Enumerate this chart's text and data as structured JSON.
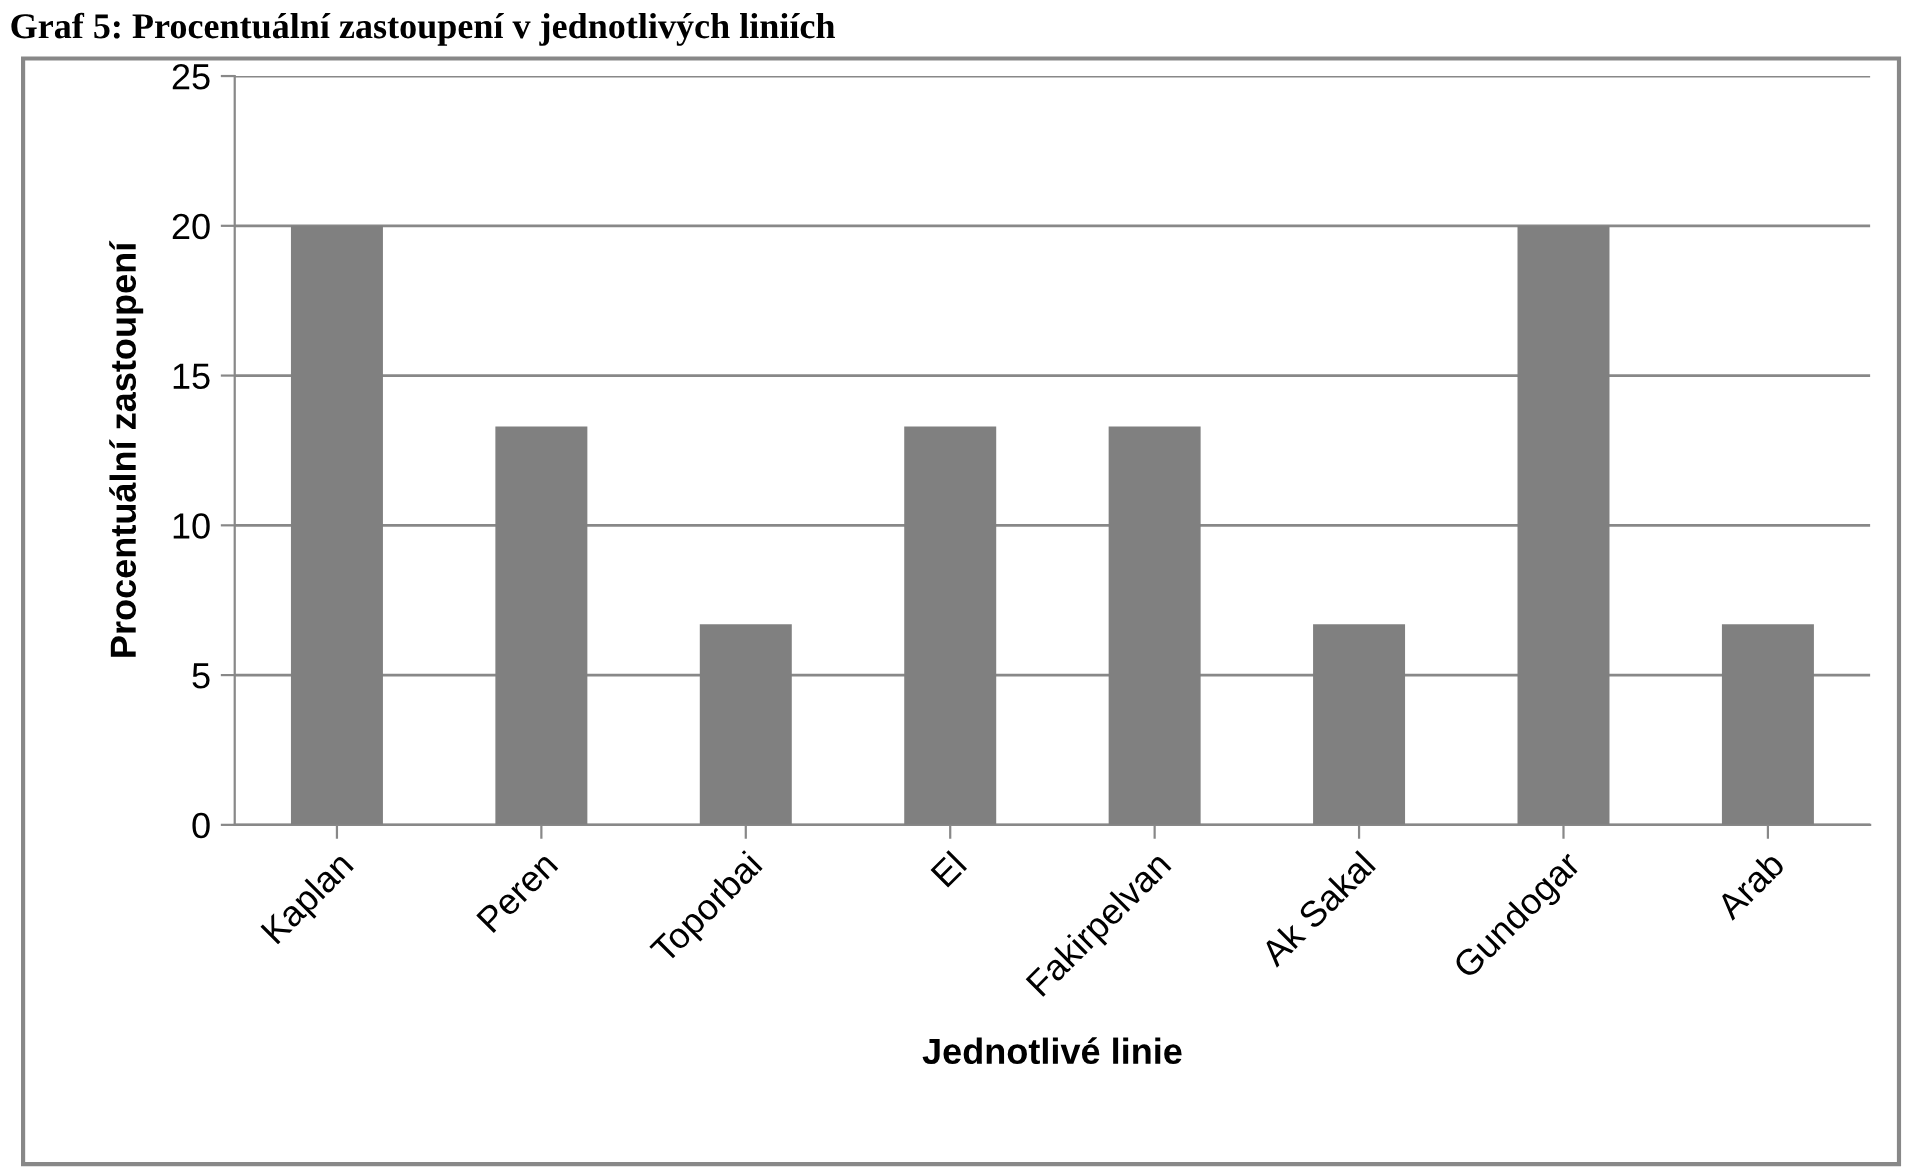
{
  "chart_data": {
    "type": "bar",
    "title": "Graf 5: Procentuální zastoupení v jednotlivých liniích",
    "xlabel": "Jednotlivé linie",
    "ylabel": "Procentuální zastoupení",
    "categories": [
      "Kaplan",
      "Peren",
      "Toporbai",
      "El",
      "Fakirpelvan",
      "Ak Sakal",
      "Gundogar",
      "Arab"
    ],
    "values": [
      20,
      13.3,
      6.7,
      13.3,
      13.3,
      6.7,
      20,
      6.7
    ],
    "color": "#808080",
    "ylim": [
      0,
      25
    ],
    "yticks": [
      0,
      5,
      10,
      15,
      20,
      25
    ],
    "grid": "y",
    "legend": false
  }
}
